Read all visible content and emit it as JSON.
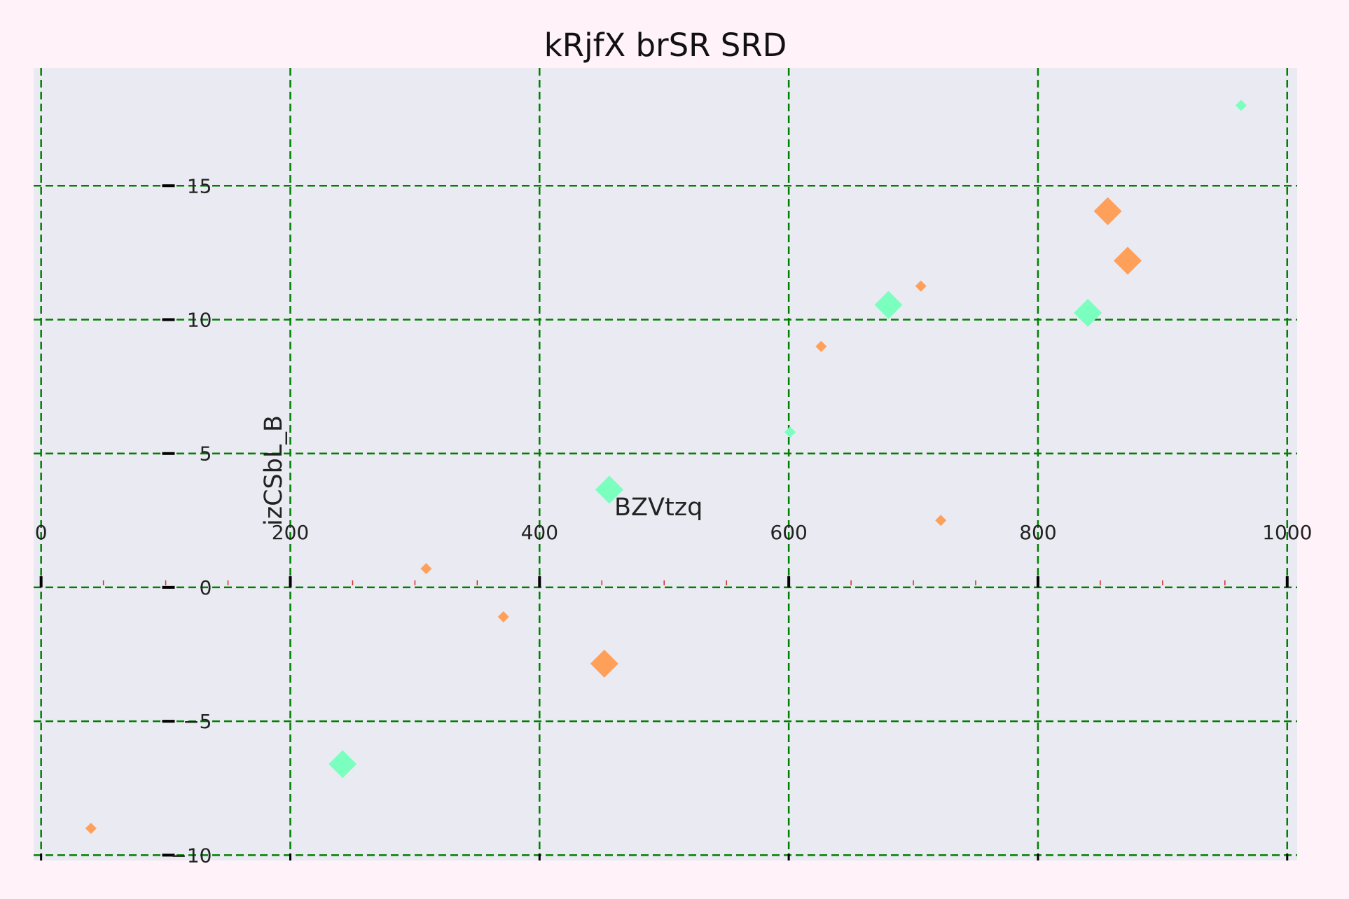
{
  "chart_data": {
    "type": "scatter",
    "title": "kRjfX  brSR SRD",
    "xlabel": "",
    "ylabel": "izCSbL_B",
    "xlim": [
      -6,
      1008
    ],
    "ylim": [
      -10.2,
      19.4
    ],
    "x_ticks": [
      0,
      200,
      400,
      600,
      800,
      1000
    ],
    "x_tick_labels": [
      "0",
      "200",
      "400",
      "600",
      "800",
      "1000"
    ],
    "y_ticks": [
      -10,
      -5,
      0,
      5,
      10,
      15
    ],
    "y_tick_labels": [
      "−10",
      "−5",
      "0",
      "5",
      "10",
      "15"
    ],
    "x_minor_ticks": [
      50,
      100,
      150,
      250,
      300,
      350,
      450,
      500,
      550,
      650,
      700,
      750,
      850,
      900,
      950
    ],
    "grid": true,
    "grid_color": "#008000",
    "plot_background": "#eaeaf2",
    "page_background": "#fff2f9",
    "marker": "diamond",
    "series": [
      {
        "color": "#ffa05a",
        "points": [
          {
            "x": 40,
            "y": -9.0,
            "size": "small"
          },
          {
            "x": 309,
            "y": 0.7,
            "size": "small"
          },
          {
            "x": 371,
            "y": -1.1,
            "size": "small"
          },
          {
            "x": 452,
            "y": -2.85,
            "size": "large"
          },
          {
            "x": 626,
            "y": 9.0,
            "size": "small"
          },
          {
            "x": 706,
            "y": 11.25,
            "size": "small"
          },
          {
            "x": 722,
            "y": 2.5,
            "size": "small"
          },
          {
            "x": 856,
            "y": 14.05,
            "size": "large"
          },
          {
            "x": 872,
            "y": 12.2,
            "size": "large"
          }
        ]
      },
      {
        "color": "#7affbe",
        "points": [
          {
            "x": 242,
            "y": -6.6,
            "size": "large"
          },
          {
            "x": 456,
            "y": 3.65,
            "size": "large"
          },
          {
            "x": 601,
            "y": 5.8,
            "size": "small"
          },
          {
            "x": 680,
            "y": 10.55,
            "size": "large"
          },
          {
            "x": 840,
            "y": 10.25,
            "size": "large"
          },
          {
            "x": 963,
            "y": 18.0,
            "size": "small"
          }
        ]
      }
    ],
    "annotations": [
      {
        "text": "BZVtzq",
        "x": 460,
        "y": 3.0
      }
    ]
  }
}
